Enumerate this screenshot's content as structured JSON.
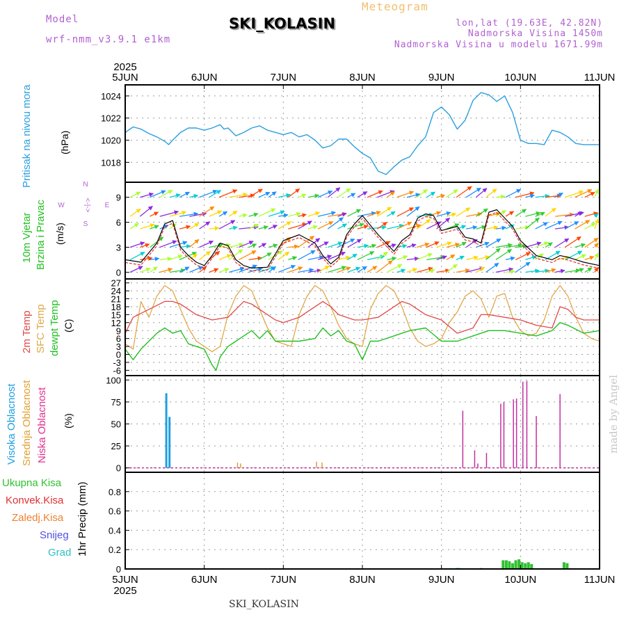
{
  "header": {
    "model_label": "Model",
    "model_name": "wrf-nmm_v3.9.1  e1km",
    "meteogram_label": "Meteogram",
    "station_title": "SKI_KOLASIN",
    "lonlat": "lon,lat (19.63E, 42.82N)",
    "altitude": "Nadmorska Visina 1450m",
    "model_altitude": "Nadmorska Visina u modelu 1671.99m"
  },
  "footer": {
    "station_title": "SKI_KOLASIN",
    "watermark": "made by Angel"
  },
  "colors": {
    "pressure": "#2a9fe0",
    "wind_black": "#000000",
    "wind_red": "#e03030",
    "temp2m": "#e04848",
    "sfc": "#e0a848",
    "dewpt": "#20c020",
    "high_cloud": "#1f9fe0",
    "mid_cloud": "#e0a030",
    "low_cloud": "#c030a0",
    "precip": "#30c030"
  },
  "chart_data": [
    {
      "type": "line",
      "id": "pressure",
      "title": "",
      "ylabel_parts": [
        "Pritisak na nivou mora",
        "(hPa)"
      ],
      "x_year": "2025",
      "x_ticks": [
        "5JUN",
        "6JUN",
        "7JUN",
        "8JUN",
        "9JUN",
        "10JUN",
        "11JUN"
      ],
      "ylim": [
        1016.2,
        1025
      ],
      "y_ticks": [
        1018,
        1020,
        1022,
        1024
      ],
      "grid": true,
      "series": [
        {
          "key": "pressure",
          "x": [
            0,
            0.1,
            0.2,
            0.3,
            0.4,
            0.5,
            0.55,
            0.6,
            0.7,
            0.8,
            0.9,
            1.0,
            1.1,
            1.2,
            1.25,
            1.3,
            1.4,
            1.5,
            1.6,
            1.7,
            1.8,
            1.9,
            2.0,
            2.1,
            2.2,
            2.3,
            2.4,
            2.5,
            2.6,
            2.7,
            2.8,
            2.9,
            3.0,
            3.1,
            3.2,
            3.3,
            3.4,
            3.5,
            3.6,
            3.7,
            3.8,
            3.9,
            4.0,
            4.1,
            4.2,
            4.3,
            4.4,
            4.5,
            4.6,
            4.7,
            4.8,
            4.9,
            5.0,
            5.1,
            5.2,
            5.3,
            5.4,
            5.5,
            5.6,
            5.7,
            5.8,
            5.9,
            6.0
          ],
          "values": [
            1020.7,
            1021.2,
            1021.0,
            1020.6,
            1020.3,
            1019.9,
            1019.6,
            1020.0,
            1020.7,
            1021.1,
            1021.1,
            1020.9,
            1021.1,
            1021.4,
            1021.0,
            1021.1,
            1020.4,
            1020.7,
            1021.1,
            1021.3,
            1020.9,
            1020.7,
            1020.5,
            1020.7,
            1020.3,
            1020.5,
            1020.0,
            1019.3,
            1019.5,
            1020.1,
            1020.1,
            1019.4,
            1018.8,
            1018.4,
            1017.2,
            1016.9,
            1017.6,
            1018.2,
            1018.5,
            1019.5,
            1020.3,
            1022.5,
            1023.0,
            1022.3,
            1021.0,
            1021.8,
            1023.6,
            1024.3,
            1024.1,
            1023.5,
            1024.0,
            1022.5,
            1020.0,
            1019.7,
            1019.7,
            1019.6,
            1020.9,
            1020.7,
            1020.3,
            1019.7,
            1019.6,
            1019.6,
            1019.6
          ]
        }
      ]
    },
    {
      "type": "line",
      "id": "wind",
      "ylabel_parts": [
        "10m Vjetar",
        "Brzina i Pravac",
        "(m/s)"
      ],
      "compass": {
        "n": "N",
        "w": "W",
        "e": "E",
        "s": "S",
        "arrows": "<-|->"
      },
      "ylim": [
        -0.8,
        10.8
      ],
      "y_ticks": [
        0,
        3,
        6,
        9
      ],
      "grid": true,
      "series": [
        {
          "key": "wind_speed",
          "x": [
            0,
            0.2,
            0.4,
            0.5,
            0.6,
            0.7,
            0.8,
            0.9,
            1.0,
            1.1,
            1.2,
            1.3,
            1.4,
            1.5,
            1.6,
            1.8,
            2.0,
            2.2,
            2.4,
            2.5,
            2.6,
            2.7,
            2.8,
            2.9,
            3.0,
            3.2,
            3.4,
            3.5,
            3.6,
            3.7,
            3.8,
            3.9,
            4.0,
            4.2,
            4.3,
            4.4,
            4.5,
            4.6,
            4.7,
            4.8,
            4.9,
            5.0,
            5.2,
            5.4,
            5.5,
            5.6,
            5.7,
            5.8,
            6.0
          ],
          "values": [
            1.5,
            1.2,
            3.5,
            5.8,
            6.2,
            3.0,
            2.0,
            1.2,
            0.8,
            2.0,
            3.5,
            3.2,
            1.5,
            0.8,
            0.5,
            0.6,
            3.8,
            4.5,
            3.5,
            2.0,
            1.0,
            1.8,
            4.5,
            5.8,
            6.8,
            4.5,
            2.5,
            3.8,
            4.5,
            6.5,
            7.0,
            6.8,
            5.0,
            5.5,
            4.2,
            4.0,
            3.5,
            7.2,
            7.5,
            6.5,
            5.5,
            3.8,
            2.0,
            1.5,
            2.0,
            1.8,
            1.5,
            1.2,
            0.8
          ]
        }
      ]
    },
    {
      "type": "line",
      "id": "temperature",
      "ylabel_parts": [
        "2m Temp",
        "SFC Temp",
        "dewpt Temp",
        "(C)"
      ],
      "ylim": [
        -8,
        28.5
      ],
      "y_ticks": [
        -6,
        -3,
        0,
        3,
        6,
        9,
        12,
        15,
        18,
        21,
        24,
        27
      ],
      "grid": true,
      "series": [
        {
          "key": "temp2m",
          "x": [
            0,
            0.1,
            0.3,
            0.5,
            0.6,
            0.7,
            0.8,
            0.9,
            1.0,
            1.1,
            1.3,
            1.5,
            1.6,
            1.7,
            1.8,
            1.9,
            2.0,
            2.2,
            2.5,
            2.6,
            2.7,
            2.8,
            2.9,
            3.0,
            3.2,
            3.5,
            3.6,
            3.7,
            3.8,
            3.9,
            4.0,
            4.2,
            4.4,
            4.5,
            4.6,
            4.8,
            5.0,
            5.2,
            5.4,
            5.5,
            5.6,
            5.7,
            5.8,
            6.0
          ],
          "values": [
            8,
            14,
            17,
            20,
            20,
            19,
            17,
            15,
            14,
            13,
            14,
            20,
            19,
            17,
            15,
            13,
            12,
            14,
            20,
            18,
            15,
            14,
            13,
            13,
            14,
            20,
            19,
            17,
            15,
            14,
            13,
            8,
            10,
            15,
            15,
            14,
            13,
            11,
            10,
            18,
            17,
            14,
            13,
            13
          ]
        },
        {
          "key": "sfc",
          "x": [
            0,
            0.1,
            0.2,
            0.3,
            0.4,
            0.5,
            0.6,
            0.7,
            0.8,
            0.9,
            1.0,
            1.1,
            1.2,
            1.3,
            1.4,
            1.5,
            1.6,
            1.7,
            1.8,
            1.9,
            2.0,
            2.1,
            2.2,
            2.3,
            2.4,
            2.5,
            2.6,
            2.7,
            2.8,
            2.9,
            3.0,
            3.1,
            3.2,
            3.3,
            3.4,
            3.5,
            3.6,
            3.7,
            3.8,
            3.9,
            4.0,
            4.1,
            4.2,
            4.3,
            4.4,
            4.5,
            4.6,
            4.7,
            4.8,
            4.9,
            5.0,
            5.1,
            5.2,
            5.3,
            5.4,
            5.5,
            5.6,
            5.7,
            5.8,
            5.9,
            6.0
          ],
          "values": [
            4,
            2,
            20,
            14,
            22,
            26,
            24,
            17,
            10,
            5,
            3,
            1,
            3,
            15,
            22,
            26,
            24,
            17,
            10,
            5,
            4,
            3,
            15,
            22,
            26,
            24,
            18,
            11,
            6,
            4,
            3,
            17,
            23,
            26,
            24,
            18,
            10,
            5,
            3,
            4,
            6,
            12,
            16,
            22,
            24,
            21,
            14,
            22,
            23,
            14,
            9,
            7,
            8,
            13,
            22,
            26,
            22,
            14,
            8,
            6,
            5
          ]
        },
        {
          "key": "dewpt",
          "x": [
            0,
            0.1,
            0.2,
            0.3,
            0.4,
            0.5,
            0.6,
            0.7,
            0.8,
            0.9,
            1.0,
            1.1,
            1.15,
            1.2,
            1.3,
            1.4,
            1.5,
            1.6,
            1.7,
            1.8,
            1.9,
            2.0,
            2.2,
            2.4,
            2.5,
            2.6,
            2.7,
            2.8,
            2.9,
            3.0,
            3.1,
            3.2,
            3.4,
            3.5,
            3.6,
            3.8,
            4.0,
            4.2,
            4.4,
            4.6,
            4.8,
            5.0,
            5.2,
            5.4,
            5.5,
            5.6,
            5.8,
            6.0
          ],
          "values": [
            2,
            -2,
            2,
            5,
            8,
            10,
            8,
            9,
            4,
            3,
            2,
            -4,
            -6,
            -1,
            3,
            5,
            7,
            9,
            6,
            9,
            5,
            5,
            5,
            6,
            10,
            7,
            9,
            5,
            4,
            -2,
            5,
            5,
            7,
            8,
            9,
            10,
            5,
            5,
            7,
            9,
            9,
            8,
            7,
            9,
            12,
            11,
            8,
            9
          ]
        }
      ]
    },
    {
      "type": "bar",
      "id": "clouds",
      "ylabel_parts": [
        "Visoka Oblacnost",
        "Srednja Oblacnost",
        "Niska Oblacnost",
        "(%)"
      ],
      "ylim": [
        -5,
        105
      ],
      "y_ticks": [
        0,
        25,
        50,
        75,
        100
      ],
      "grid": true,
      "series": [
        {
          "key": "high_cloud",
          "x": [
            0.52,
            0.56
          ],
          "values": [
            85,
            58
          ]
        },
        {
          "key": "mid_cloud",
          "x": [
            1.42,
            1.46,
            2.42,
            2.49
          ],
          "values": [
            6,
            5,
            7,
            6
          ]
        },
        {
          "key": "low_cloud",
          "x": [
            4.27,
            4.42,
            4.46,
            4.57,
            4.75,
            4.79,
            4.91,
            4.95,
            5.03,
            5.08,
            5.2,
            5.5
          ],
          "values": [
            65,
            20,
            5,
            17,
            73,
            75,
            78,
            79,
            98,
            99,
            59,
            84
          ]
        }
      ]
    },
    {
      "type": "bar",
      "id": "precip",
      "legend": [
        "Ukupna Kisa",
        "Konvek.Kisa",
        "Zaledj.Kisa",
        "Snijeg",
        "Grad"
      ],
      "ylabel": "1hr Precip (mm)",
      "ylim": [
        0,
        1.0
      ],
      "y_ticks": [
        0,
        0.2,
        0.4,
        0.6,
        0.8
      ],
      "grid": true,
      "series": [
        {
          "key": "precip",
          "x": [
            4.2,
            4.22,
            4.5,
            4.78,
            4.82,
            4.86,
            4.9,
            4.94,
            4.98,
            5.02,
            5.06,
            5.1,
            5.14,
            5.55,
            5.59
          ],
          "values": [
            0.01,
            0.01,
            0.01,
            0.09,
            0.09,
            0.08,
            0.06,
            0.09,
            0.1,
            0.07,
            0.06,
            0.07,
            0.05,
            0.07,
            0.06
          ]
        }
      ]
    }
  ]
}
